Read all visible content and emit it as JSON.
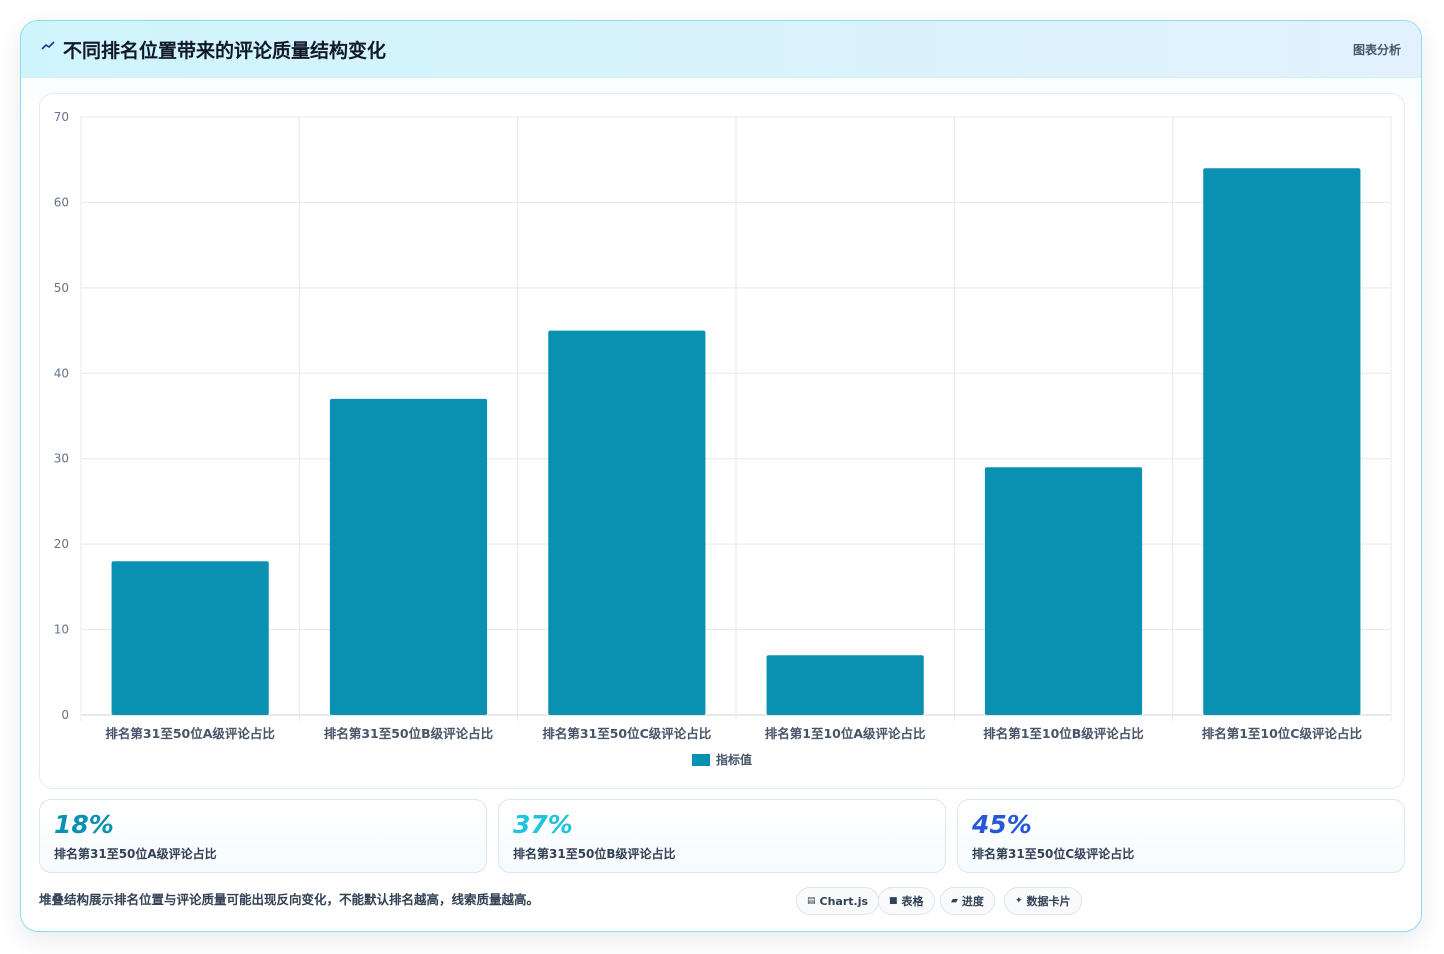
{
  "header": {
    "title": "不同排名位置带来的评论质量结构变化",
    "tag": "图表分析",
    "icon": "chart-line-icon"
  },
  "chart_data": {
    "type": "bar",
    "categories": [
      "排名第31至50位A级评论占比",
      "排名第31至50位B级评论占比",
      "排名第31至50位C级评论占比",
      "排名第1至10位A级评论占比",
      "排名第1至10位B级评论占比",
      "排名第1至10位C级评论占比"
    ],
    "series": [
      {
        "name": "指标值",
        "values": [
          18,
          37,
          45,
          7,
          29,
          64
        ],
        "color": "#0a91b1"
      }
    ],
    "ylim": [
      0,
      70
    ],
    "yticks": [
      0,
      10,
      20,
      30,
      40,
      50,
      60,
      70
    ],
    "grid": true,
    "legend": "bottom"
  },
  "stats": [
    {
      "value": "18%",
      "label": "排名第31至50位A级评论占比",
      "color": "#0a91b1"
    },
    {
      "value": "37%",
      "label": "排名第31至50位B级评论占比",
      "color": "#22c3dc"
    },
    {
      "value": "45%",
      "label": "排名第31至50位C级评论占比",
      "color": "#2458d6"
    }
  ],
  "footer": {
    "note": "堆叠结构展示排名位置与评论质量可能出现反向变化，不能默认排名越高，线索质量越高。",
    "pills": [
      {
        "icon": "chart-icon",
        "glyph": "▤",
        "label": "Chart.js"
      },
      {
        "icon": "table-icon",
        "glyph": "■",
        "label": "表格"
      },
      {
        "icon": "progress-icon",
        "glyph": "▰",
        "label": "进度"
      },
      {
        "icon": "sparkle-icon",
        "glyph": "✦",
        "label": "数据卡片"
      }
    ]
  }
}
